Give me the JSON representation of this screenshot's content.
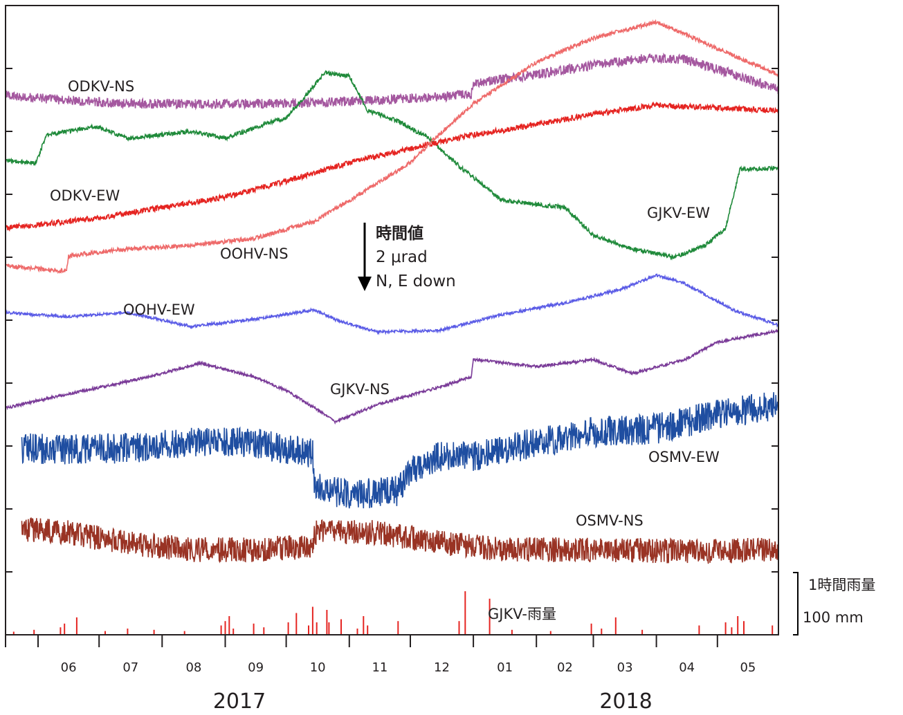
{
  "chart_data": {
    "type": "line",
    "title": "",
    "xlabel": "",
    "ylabel": "",
    "grid": false,
    "x_range": [
      "2017-05-16",
      "2018-05-31"
    ],
    "month_ticks": [
      "06",
      "07",
      "08",
      "09",
      "10",
      "11",
      "12",
      "01",
      "02",
      "03",
      "04",
      "05"
    ],
    "years": [
      "2017",
      "2018"
    ],
    "scale_note": {
      "line1": "時間値",
      "line2": "2 μrad",
      "line3": "N, E down"
    },
    "rain_scale": {
      "label": "1時間雨量",
      "value": "100 mm"
    },
    "series": [
      {
        "name": "ODKV-NS",
        "color": "#a4579f",
        "noise": 7,
        "points": [
          [
            "2017-05-16",
            138
          ],
          [
            "2017-06-15",
            145
          ],
          [
            "2017-07-15",
            150
          ],
          [
            "2017-08-15",
            150
          ],
          [
            "2017-09-15",
            150
          ],
          [
            "2017-10-15",
            148
          ],
          [
            "2017-11-15",
            145
          ],
          [
            "2017-12-15",
            140
          ],
          [
            "2017-12-31",
            136
          ],
          [
            "2018-01-01",
            120
          ],
          [
            "2018-01-31",
            108
          ],
          [
            "2018-02-28",
            95
          ],
          [
            "2018-03-25",
            85
          ],
          [
            "2018-04-15",
            86
          ],
          [
            "2018-05-10",
            108
          ],
          [
            "2018-05-31",
            130
          ]
        ]
      },
      {
        "name": "GJKV-EW",
        "color": "#1f8a3a",
        "noise": 3,
        "points": [
          [
            "2017-05-16",
            232
          ],
          [
            "2017-05-31",
            236
          ],
          [
            "2017-06-05",
            195
          ],
          [
            "2017-06-30",
            183
          ],
          [
            "2017-07-15",
            200
          ],
          [
            "2017-08-15",
            190
          ],
          [
            "2017-09-01",
            200
          ],
          [
            "2017-09-20",
            180
          ],
          [
            "2017-10-01",
            170
          ],
          [
            "2017-10-10",
            140
          ],
          [
            "2017-10-20",
            105
          ],
          [
            "2017-11-01",
            110
          ],
          [
            "2017-11-10",
            160
          ],
          [
            "2017-11-25",
            175
          ],
          [
            "2017-12-10",
            200
          ],
          [
            "2017-12-25",
            240
          ],
          [
            "2018-01-15",
            290
          ],
          [
            "2018-02-15",
            300
          ],
          [
            "2018-03-01",
            340
          ],
          [
            "2018-03-20",
            360
          ],
          [
            "2018-04-10",
            372
          ],
          [
            "2018-04-25",
            355
          ],
          [
            "2018-05-05",
            330
          ],
          [
            "2018-05-12",
            245
          ],
          [
            "2018-05-31",
            243
          ]
        ]
      },
      {
        "name": "ODKV-EW",
        "color": "#e52421",
        "noise": 4,
        "points": [
          [
            "2017-05-16",
            330
          ],
          [
            "2017-07-01",
            315
          ],
          [
            "2017-08-01",
            300
          ],
          [
            "2017-09-01",
            285
          ],
          [
            "2017-10-01",
            262
          ],
          [
            "2017-11-01",
            235
          ],
          [
            "2017-12-01",
            215
          ],
          [
            "2018-01-01",
            195
          ],
          [
            "2018-02-01",
            180
          ],
          [
            "2018-03-01",
            165
          ],
          [
            "2018-04-01",
            152
          ],
          [
            "2018-05-01",
            156
          ],
          [
            "2018-05-31",
            160
          ]
        ]
      },
      {
        "name": "OOHV-NS",
        "color": "#ee6a6a",
        "noise": 3,
        "points": [
          [
            "2017-05-16",
            385
          ],
          [
            "2017-06-15",
            392
          ],
          [
            "2017-06-16",
            370
          ],
          [
            "2017-07-15",
            360
          ],
          [
            "2017-08-15",
            355
          ],
          [
            "2017-09-15",
            345
          ],
          [
            "2017-10-15",
            320
          ],
          [
            "2017-11-01",
            290
          ],
          [
            "2017-11-15",
            265
          ],
          [
            "2017-12-01",
            235
          ],
          [
            "2017-12-15",
            195
          ],
          [
            "2018-01-01",
            150
          ],
          [
            "2018-02-01",
            90
          ],
          [
            "2018-03-01",
            55
          ],
          [
            "2018-04-01",
            32
          ],
          [
            "2018-05-01",
            70
          ],
          [
            "2018-05-31",
            108
          ]
        ]
      },
      {
        "name": "OOHV-EW",
        "color": "#5b5ce6",
        "noise": 2,
        "points": [
          [
            "2017-05-16",
            452
          ],
          [
            "2017-06-15",
            458
          ],
          [
            "2017-07-15",
            452
          ],
          [
            "2017-08-15",
            472
          ],
          [
            "2017-09-15",
            462
          ],
          [
            "2017-10-15",
            448
          ],
          [
            "2017-10-25",
            462
          ],
          [
            "2017-11-15",
            480
          ],
          [
            "2017-12-15",
            478
          ],
          [
            "2018-01-15",
            455
          ],
          [
            "2018-02-15",
            438
          ],
          [
            "2018-03-15",
            418
          ],
          [
            "2018-04-01",
            398
          ],
          [
            "2018-04-15",
            410
          ],
          [
            "2018-05-10",
            450
          ],
          [
            "2018-05-31",
            470
          ]
        ]
      },
      {
        "name": "GJKV-NS",
        "color": "#7a3b98",
        "noise": 2,
        "points": [
          [
            "2017-05-16",
            590
          ],
          [
            "2017-06-15",
            570
          ],
          [
            "2017-07-15",
            552
          ],
          [
            "2017-08-01",
            540
          ],
          [
            "2017-08-20",
            525
          ],
          [
            "2017-09-15",
            545
          ],
          [
            "2017-10-01",
            565
          ],
          [
            "2017-10-15",
            590
          ],
          [
            "2017-10-25",
            610
          ],
          [
            "2017-11-15",
            585
          ],
          [
            "2017-12-15",
            560
          ],
          [
            "2017-12-31",
            545
          ],
          [
            "2018-01-01",
            520
          ],
          [
            "2018-02-01",
            530
          ],
          [
            "2018-03-01",
            520
          ],
          [
            "2018-03-20",
            540
          ],
          [
            "2018-04-15",
            520
          ],
          [
            "2018-05-01",
            495
          ],
          [
            "2018-05-31",
            478
          ]
        ]
      },
      {
        "name": "OSMV-EW",
        "color": "#1f4ea1",
        "noise": 22,
        "points": [
          [
            "2017-05-24",
            648
          ],
          [
            "2017-06-15",
            650
          ],
          [
            "2017-07-15",
            648
          ],
          [
            "2017-08-15",
            640
          ],
          [
            "2017-09-15",
            640
          ],
          [
            "2017-10-01",
            650
          ],
          [
            "2017-10-14",
            655
          ],
          [
            "2017-10-15",
            705
          ],
          [
            "2017-11-01",
            715
          ],
          [
            "2017-11-15",
            712
          ],
          [
            "2017-11-25",
            710
          ],
          [
            "2017-12-01",
            680
          ],
          [
            "2017-12-15",
            660
          ],
          [
            "2018-01-01",
            660
          ],
          [
            "2018-02-01",
            640
          ],
          [
            "2018-03-01",
            625
          ],
          [
            "2018-04-01",
            620
          ],
          [
            "2018-05-01",
            600
          ],
          [
            "2018-05-31",
            585
          ]
        ]
      },
      {
        "name": "OSMV-NS",
        "color": "#993324",
        "noise": 18,
        "points": [
          [
            "2017-05-24",
            765
          ],
          [
            "2017-06-15",
            770
          ],
          [
            "2017-07-15",
            785
          ],
          [
            "2017-08-15",
            795
          ],
          [
            "2017-09-15",
            795
          ],
          [
            "2017-10-14",
            790
          ],
          [
            "2017-10-15",
            770
          ],
          [
            "2017-11-15",
            770
          ],
          [
            "2017-12-15",
            785
          ],
          [
            "2018-01-15",
            795
          ],
          [
            "2018-02-15",
            795
          ],
          [
            "2018-03-15",
            795
          ],
          [
            "2018-04-15",
            798
          ],
          [
            "2018-05-31",
            795
          ]
        ]
      }
    ],
    "rain": {
      "name": "GJKV-雨量",
      "color": "#e52421",
      "events": [
        [
          "2017-05-20",
          5
        ],
        [
          "2017-05-30",
          8
        ],
        [
          "2017-06-12",
          12
        ],
        [
          "2017-06-14",
          18
        ],
        [
          "2017-06-20",
          28
        ],
        [
          "2017-07-04",
          6
        ],
        [
          "2017-07-15",
          10
        ],
        [
          "2017-07-28",
          8
        ],
        [
          "2017-08-12",
          6
        ],
        [
          "2017-08-30",
          15
        ],
        [
          "2017-09-01",
          22
        ],
        [
          "2017-09-03",
          30
        ],
        [
          "2017-09-05",
          10
        ],
        [
          "2017-09-15",
          18
        ],
        [
          "2017-09-20",
          12
        ],
        [
          "2017-10-02",
          20
        ],
        [
          "2017-10-06",
          35
        ],
        [
          "2017-10-12",
          15
        ],
        [
          "2017-10-14",
          45
        ],
        [
          "2017-10-16",
          20
        ],
        [
          "2017-10-21",
          40
        ],
        [
          "2017-10-22",
          20
        ],
        [
          "2017-10-28",
          25
        ],
        [
          "2017-11-05",
          10
        ],
        [
          "2017-11-08",
          30
        ],
        [
          "2017-11-10",
          15
        ],
        [
          "2017-11-25",
          22
        ],
        [
          "2017-12-25",
          22
        ],
        [
          "2017-12-28",
          70
        ],
        [
          "2018-01-09",
          58
        ],
        [
          "2018-01-20",
          8
        ],
        [
          "2018-02-08",
          6
        ],
        [
          "2018-02-28",
          18
        ],
        [
          "2018-03-05",
          10
        ],
        [
          "2018-03-12",
          28
        ],
        [
          "2018-03-25",
          8
        ],
        [
          "2018-04-22",
          15
        ],
        [
          "2018-05-05",
          20
        ],
        [
          "2018-05-08",
          12
        ],
        [
          "2018-05-11",
          30
        ],
        [
          "2018-05-14",
          22
        ],
        [
          "2018-05-28",
          15
        ]
      ]
    }
  }
}
